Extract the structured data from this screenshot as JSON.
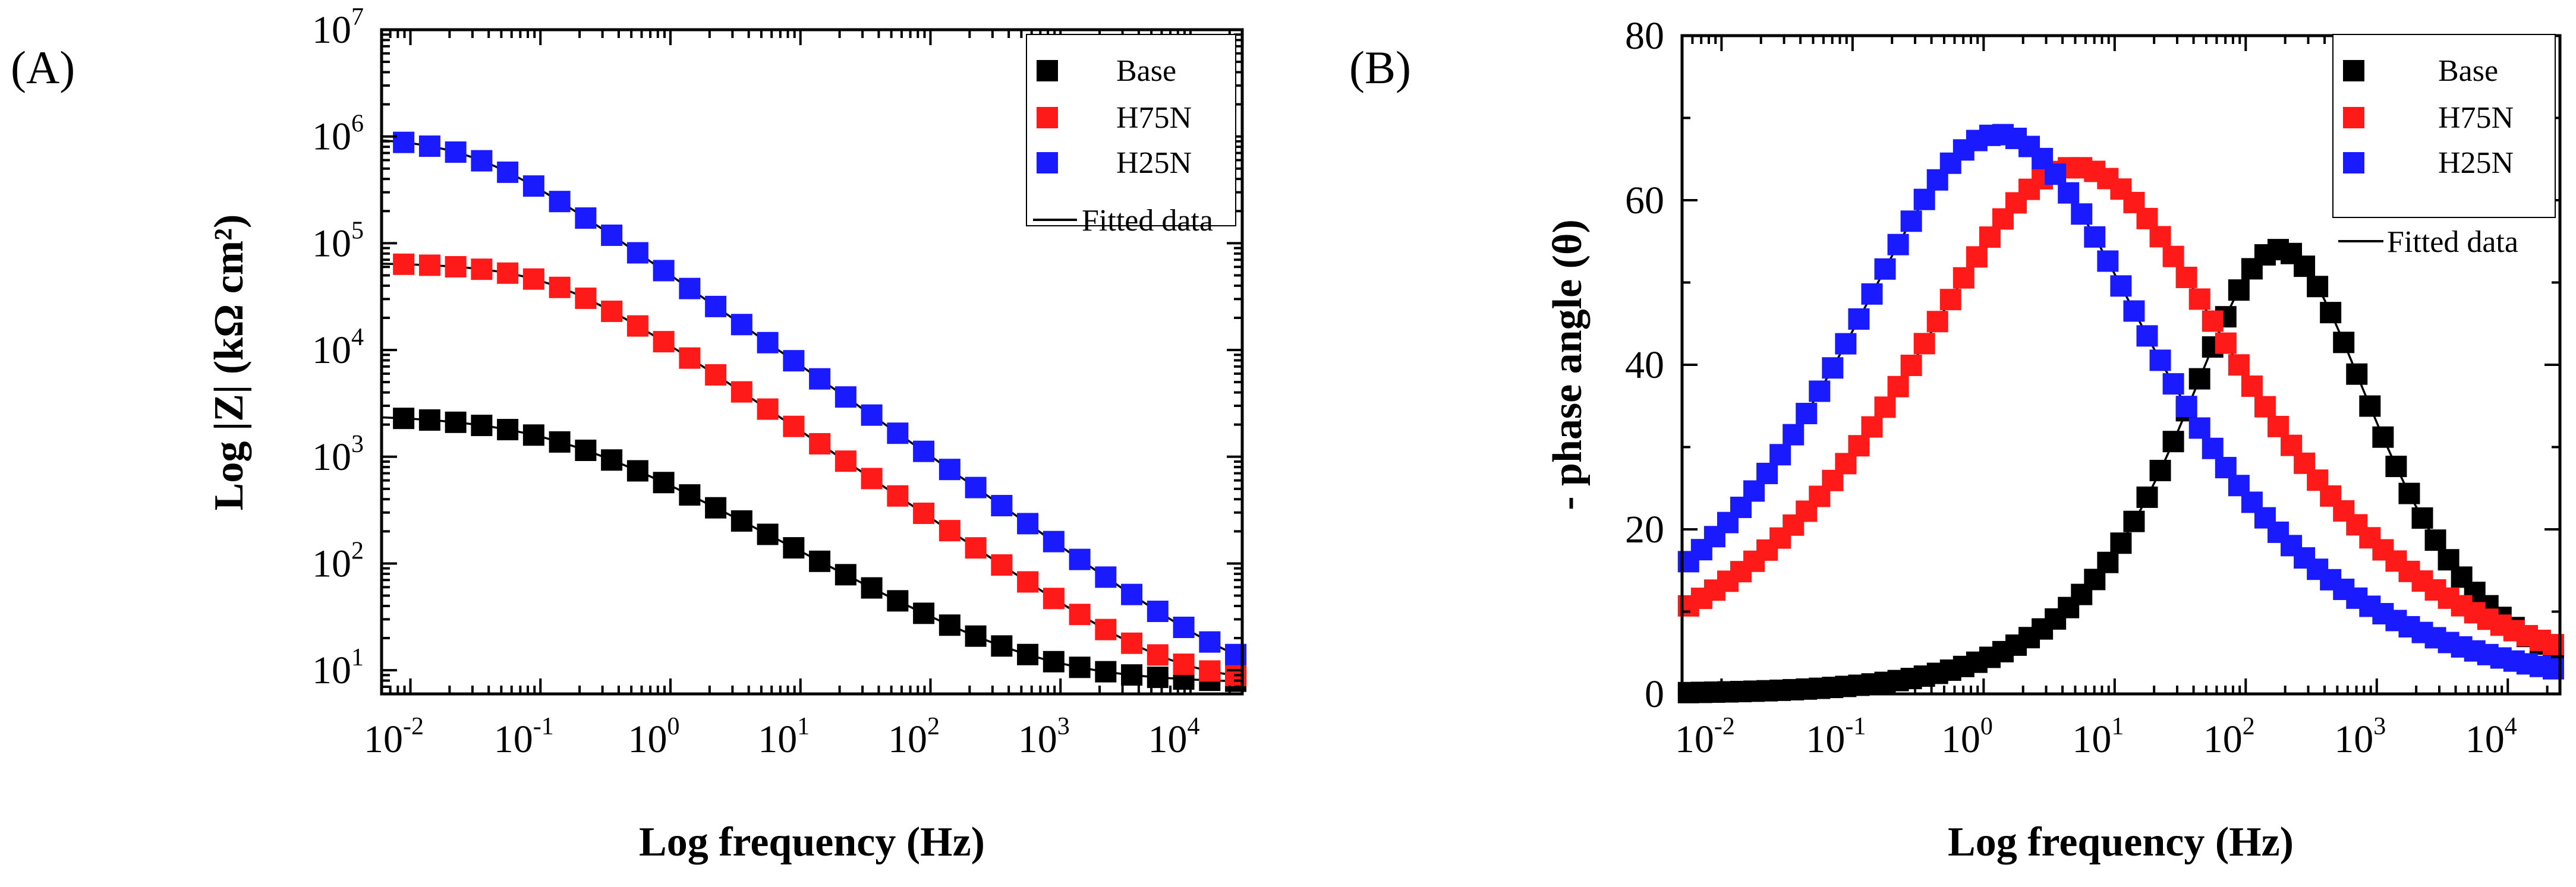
{
  "figure": {
    "panels": [
      "(A)",
      "(B)"
    ]
  },
  "chart_data": [
    {
      "type": "scatter",
      "panel_label": "(A)",
      "title": "",
      "xlabel": "Log frequency (Hz)",
      "ylabel": "Log |Z| (kΩ cm²)",
      "xscale": "log",
      "yscale": "log",
      "xlim": [
        0.006,
        25000
      ],
      "ylim": [
        6,
        10000000
      ],
      "x_tick_labels": [
        {
          "base": "10",
          "exp": "-2"
        },
        {
          "base": "10",
          "exp": "-1"
        },
        {
          "base": "10",
          "exp": "0"
        },
        {
          "base": "10",
          "exp": "1"
        },
        {
          "base": "10",
          "exp": "2"
        },
        {
          "base": "10",
          "exp": "3"
        },
        {
          "base": "10",
          "exp": "4"
        }
      ],
      "y_tick_labels": [
        {
          "base": "10",
          "exp": "1"
        },
        {
          "base": "10",
          "exp": "2"
        },
        {
          "base": "10",
          "exp": "3"
        },
        {
          "base": "10",
          "exp": "4"
        },
        {
          "base": "10",
          "exp": "5"
        },
        {
          "base": "10",
          "exp": "6"
        },
        {
          "base": "10",
          "exp": "7"
        }
      ],
      "legend": {
        "position": "top-right",
        "entries": [
          "Base",
          "H75N",
          "H25N"
        ],
        "fit_label": "Fitted data"
      },
      "model": "z_magnitude",
      "series": [
        {
          "name": "Base",
          "color": "#000000",
          "r_solution": 7.5,
          "r_polarization": 2500,
          "f_corner": 0.12,
          "alpha": 0.67
        },
        {
          "name": "H75N",
          "color": "#ff1a1a",
          "r_solution": 7.5,
          "r_polarization": 66000,
          "f_corner": 0.12,
          "alpha": 0.82
        },
        {
          "name": "H25N",
          "color": "#1a1aff",
          "r_solution": 7.5,
          "r_polarization": 1000000,
          "f_corner": 0.03,
          "alpha": 0.85
        }
      ]
    },
    {
      "type": "scatter",
      "panel_label": "(B)",
      "title": "",
      "xlabel": "Log frequency (Hz)",
      "ylabel": "- phase angle  (θ)",
      "xscale": "log",
      "yscale": "linear",
      "xlim": [
        0.005,
        25000
      ],
      "ylim": [
        0,
        80
      ],
      "x_tick_labels": [
        {
          "base": "10",
          "exp": "-2"
        },
        {
          "base": "10",
          "exp": "-1"
        },
        {
          "base": "10",
          "exp": "0"
        },
        {
          "base": "10",
          "exp": "1"
        },
        {
          "base": "10",
          "exp": "2"
        },
        {
          "base": "10",
          "exp": "3"
        },
        {
          "base": "10",
          "exp": "4"
        }
      ],
      "y_ticks": [
        0,
        20,
        40,
        60,
        80
      ],
      "legend": {
        "position": "top-right",
        "entries": [
          "Base",
          "H75N",
          "H25N"
        ],
        "fit_label": "Fitted data"
      },
      "model": "phase_peak",
      "series": [
        {
          "name": "Base",
          "color": "#000000",
          "peak_phase": 54,
          "peak_freq": 180,
          "width_decades": 0.9
        },
        {
          "name": "H75N",
          "color": "#ff1a1a",
          "peak_phase": 64,
          "peak_freq": 5,
          "width_decades": 1.55
        },
        {
          "name": "H25N",
          "color": "#1a1aff",
          "peak_phase": 68,
          "peak_freq": 1.3,
          "width_decades": 1.45
        }
      ]
    }
  ]
}
